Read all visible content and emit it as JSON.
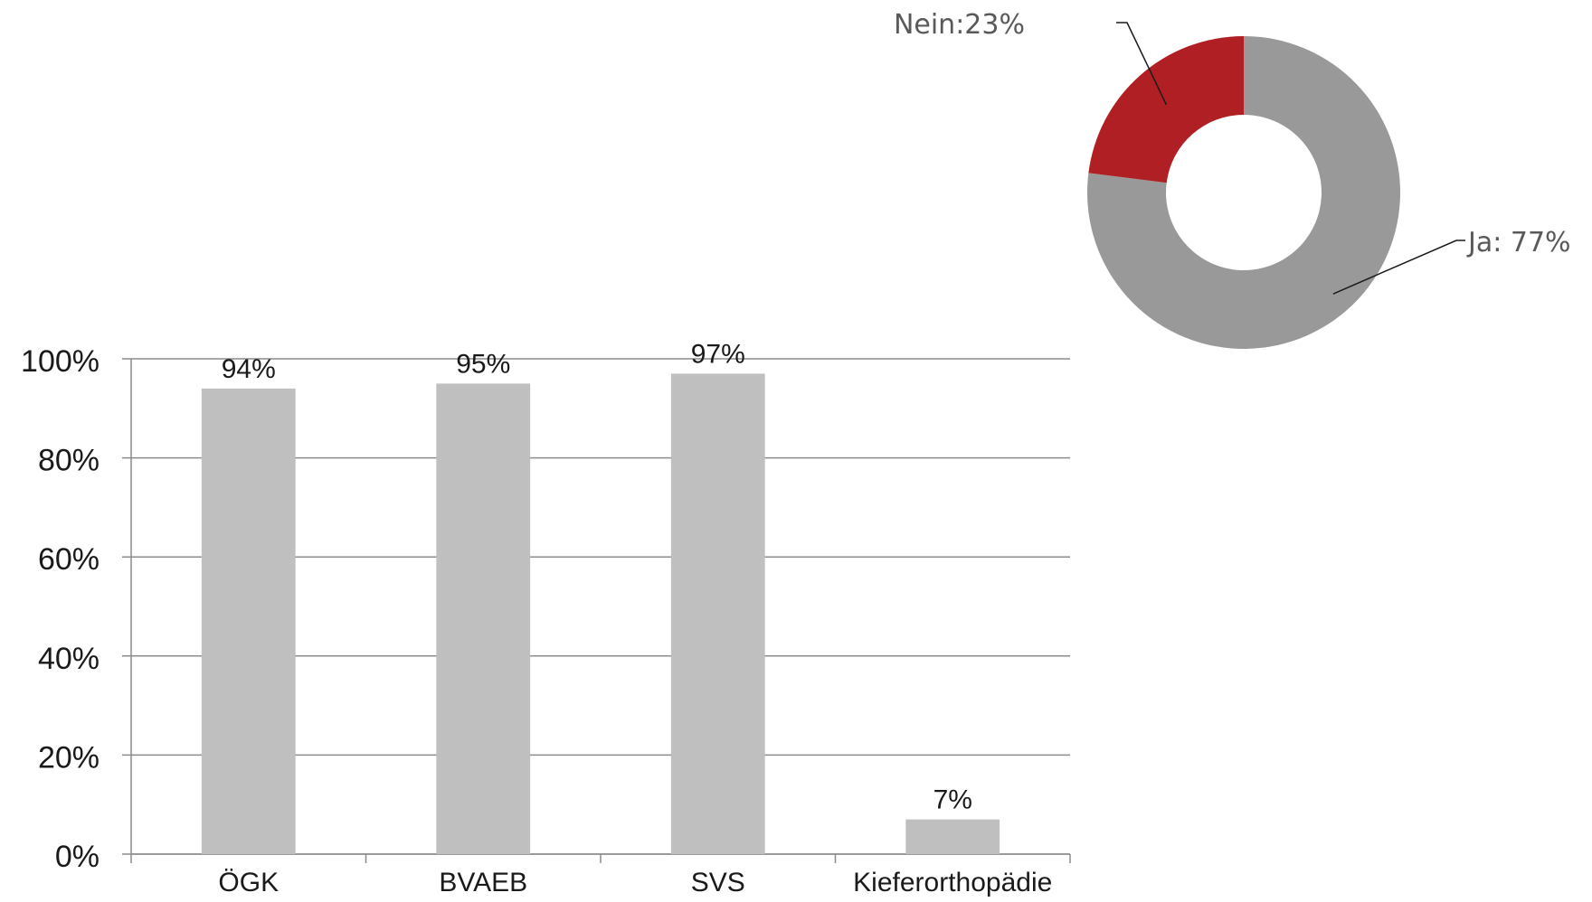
{
  "chart_data": [
    {
      "type": "bar",
      "categories": [
        "ÖGK",
        "BVAEB",
        "SVS",
        "Kieferorthopädie"
      ],
      "values": [
        94,
        95,
        97,
        7
      ],
      "data_labels": [
        "94%",
        "95%",
        "97%",
        "7%"
      ],
      "ylim": [
        0,
        100
      ],
      "yticks": [
        0,
        20,
        40,
        60,
        80,
        100
      ],
      "ytick_labels": [
        "0%",
        "20%",
        "40%",
        "60%",
        "80%",
        "100%"
      ],
      "grid": true,
      "bar_color": "#bfbfbf",
      "grid_color": "#8c8c8c"
    },
    {
      "type": "pie",
      "style": "donut",
      "slices": [
        {
          "label": "Ja: 77%",
          "value": 77,
          "color": "#999999"
        },
        {
          "label": "Nein:23%",
          "value": 23,
          "color": "#b01f24"
        }
      ]
    }
  ]
}
